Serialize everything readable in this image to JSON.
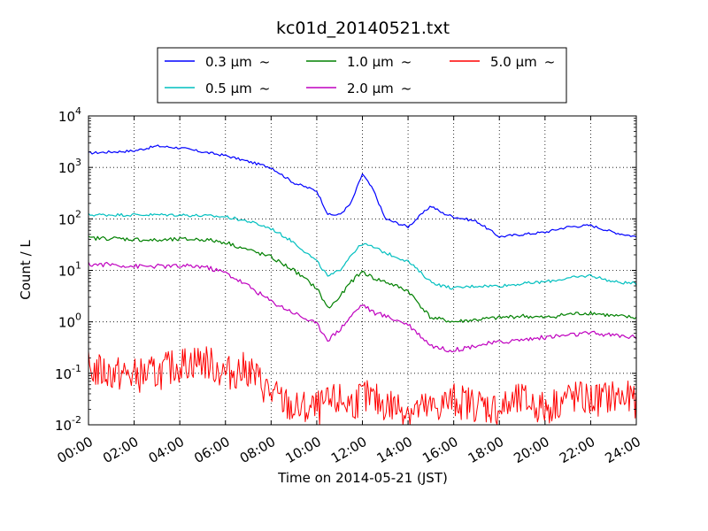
{
  "chart_data": {
    "type": "line",
    "title": "kc01d_20140521.txt",
    "xlabel": "Time on 2014-05-21 (JST)",
    "ylabel": "Count / L",
    "y_scale": "log",
    "xlim": [
      "00:00",
      "24:00"
    ],
    "ylim": [
      0.01,
      10000
    ],
    "x_ticks": [
      "00:00",
      "02:00",
      "04:00",
      "06:00",
      "08:00",
      "10:00",
      "12:00",
      "14:00",
      "16:00",
      "18:00",
      "20:00",
      "22:00",
      "24:00"
    ],
    "y_ticks": [
      {
        "base": "10",
        "exp": "-2",
        "value": 0.01
      },
      {
        "base": "10",
        "exp": "-1",
        "value": 0.1
      },
      {
        "base": "10",
        "exp": "0",
        "value": 1
      },
      {
        "base": "10",
        "exp": "1",
        "value": 10
      },
      {
        "base": "10",
        "exp": "2",
        "value": 100
      },
      {
        "base": "10",
        "exp": "3",
        "value": 1000
      },
      {
        "base": "10",
        "exp": "4",
        "value": 10000
      }
    ],
    "grid": true,
    "legend_position": "top-center",
    "legend_suffix": "~",
    "x": [
      "00:00",
      "01:00",
      "02:00",
      "03:00",
      "04:00",
      "05:00",
      "06:00",
      "07:00",
      "08:00",
      "09:00",
      "10:00",
      "10:30",
      "11:00",
      "11:30",
      "12:00",
      "12:30",
      "13:00",
      "14:00",
      "15:00",
      "15:30",
      "16:00",
      "17:00",
      "18:00",
      "19:00",
      "20:00",
      "21:00",
      "22:00",
      "23:00",
      "24:00"
    ],
    "series": [
      {
        "name": "0.3 μm",
        "color": "#0000ff",
        "values": [
          1900,
          2000,
          2100,
          2600,
          2400,
          2000,
          1700,
          1300,
          1000,
          500,
          350,
          120,
          120,
          200,
          750,
          350,
          100,
          70,
          180,
          130,
          110,
          90,
          45,
          50,
          55,
          70,
          75,
          55,
          45
        ]
      },
      {
        "name": "0.5 μm",
        "color": "#00bfbf",
        "values": [
          120,
          120,
          120,
          120,
          120,
          115,
          110,
          90,
          65,
          35,
          15,
          7.5,
          10,
          20,
          33,
          28,
          22,
          15,
          6,
          5,
          4.5,
          5,
          5,
          5.5,
          6,
          7,
          8,
          6,
          5.5
        ]
      },
      {
        "name": "1.0 μm",
        "color": "#008000",
        "values": [
          42,
          42,
          40,
          38,
          40,
          40,
          35,
          25,
          18,
          10,
          4.5,
          1.8,
          3,
          6,
          9.5,
          7,
          6,
          4,
          1.2,
          1.1,
          1,
          1.1,
          1.2,
          1.3,
          1.2,
          1.4,
          1.5,
          1.3,
          1.2
        ]
      },
      {
        "name": "2.0 μm",
        "color": "#bf00bf",
        "values": [
          13,
          13,
          12,
          12,
          12,
          12,
          9,
          5,
          2.5,
          1.5,
          0.9,
          0.45,
          0.7,
          1.3,
          2.2,
          1.5,
          1.3,
          0.9,
          0.35,
          0.3,
          0.28,
          0.35,
          0.4,
          0.45,
          0.5,
          0.55,
          0.6,
          0.55,
          0.5
        ]
      },
      {
        "name": "5.0 μm",
        "color": "#ff0000",
        "values": [
          0.12,
          0.1,
          0.09,
          0.1,
          0.15,
          0.18,
          0.1,
          0.12,
          0.04,
          0.02,
          0.02,
          0.025,
          0.03,
          0.025,
          0.035,
          0.03,
          0.025,
          0.02,
          0.02,
          0.025,
          0.03,
          0.025,
          0.02,
          0.03,
          0.02,
          0.035,
          0.03,
          0.035,
          0.03
        ]
      }
    ]
  }
}
